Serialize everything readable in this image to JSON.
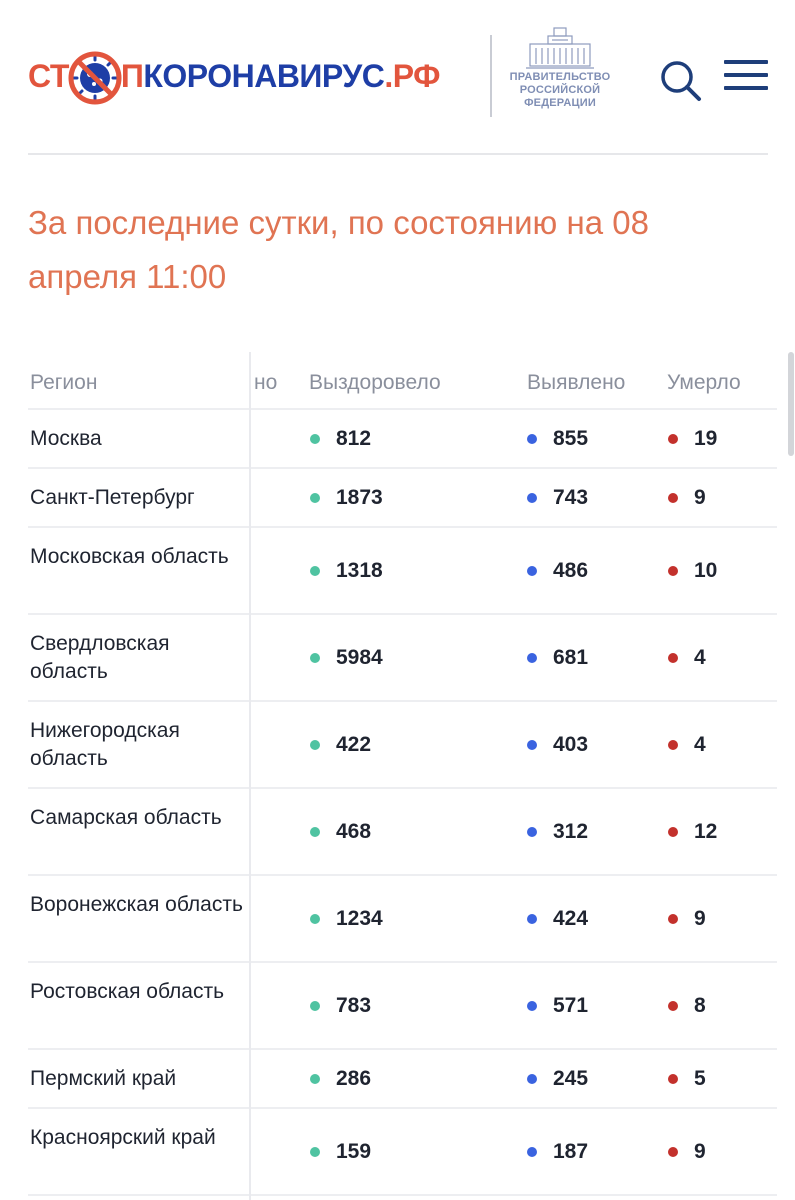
{
  "header": {
    "logo": {
      "part1": "СТ",
      "part2": "П",
      "part3": "КОРОНАВИРУС",
      "part4": ".РФ"
    },
    "gov_label": [
      "ПРАВИТЕЛЬСТВО",
      "РОССИЙСКОЙ",
      "ФЕДЕРАЦИИ"
    ]
  },
  "title": "За последние сутки, по состоянию на 08 апреля 11:00",
  "table": {
    "columns": {
      "region": "Регион",
      "hidden": "но",
      "recovered": "Выздоровело",
      "detected": "Выявлено",
      "died": "Умерло"
    },
    "rows": [
      {
        "region": "Москва",
        "recovered": "812",
        "detected": "855",
        "died": "19"
      },
      {
        "region": "Санкт-Петербург",
        "recovered": "1873",
        "detected": "743",
        "died": "9"
      },
      {
        "region": "Московская область",
        "recovered": "1318",
        "detected": "486",
        "died": "10"
      },
      {
        "region": "Свердловская область",
        "recovered": "5984",
        "detected": "681",
        "died": "4"
      },
      {
        "region": "Нижегородская область",
        "recovered": "422",
        "detected": "403",
        "died": "4"
      },
      {
        "region": "Самарская область",
        "recovered": "468",
        "detected": "312",
        "died": "12"
      },
      {
        "region": "Воронежская область",
        "recovered": "1234",
        "detected": "424",
        "died": "9"
      },
      {
        "region": "Ростовская область",
        "recovered": "783",
        "detected": "571",
        "died": "8"
      },
      {
        "region": "Пермский край",
        "recovered": "286",
        "detected": "245",
        "died": "5"
      },
      {
        "region": "Красноярский край",
        "recovered": "159",
        "detected": "187",
        "died": "9"
      }
    ]
  },
  "colors": {
    "brand_red": "#e2553d",
    "brand_blue": "#1e3ea6",
    "recovered_dot": "#4fc3a1",
    "detected_dot": "#3a63e0",
    "died_dot": "#c3312c"
  }
}
